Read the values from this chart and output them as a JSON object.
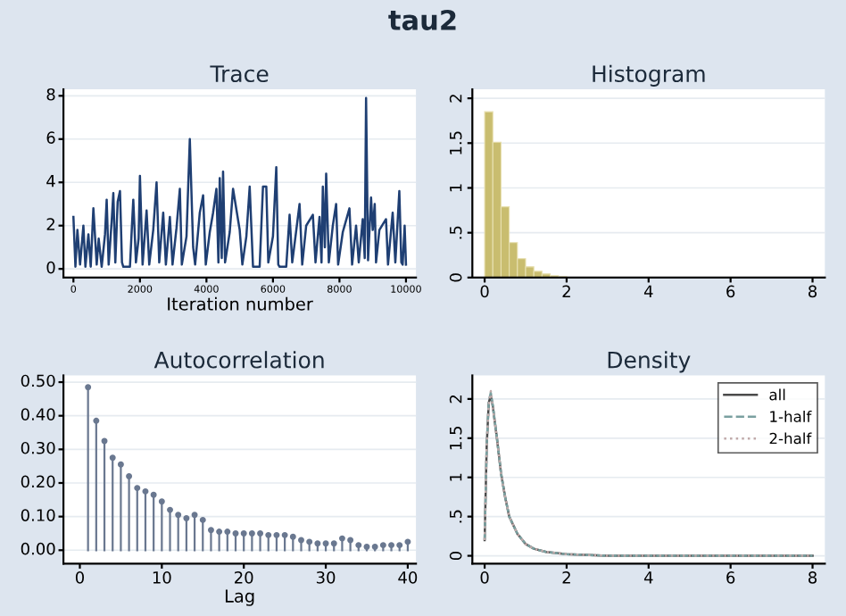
{
  "chart_data": [
    {
      "type": "line",
      "title": "Trace",
      "xlabel": "Iteration number",
      "annotations": [
        "tau2"
      ],
      "grid": "y",
      "x": [
        0,
        60,
        120,
        200,
        300,
        360,
        450,
        520,
        600,
        700,
        760,
        850,
        950,
        1000,
        1060,
        1150,
        1200,
        1260,
        1330,
        1400,
        1460,
        1500,
        1600,
        1700,
        1760,
        1800,
        1880,
        1960,
        2000,
        2080,
        2200,
        2280,
        2400,
        2500,
        2580,
        2700,
        2780,
        2900,
        2980,
        3100,
        3200,
        3260,
        3400,
        3500,
        3600,
        3660,
        3800,
        3900,
        3980,
        4100,
        4200,
        4300,
        4360,
        4400,
        4460,
        4500,
        4560,
        4700,
        4800,
        5000,
        5080,
        5200,
        5300,
        5400,
        5600,
        5700,
        5800,
        5860,
        6000,
        6100,
        6160,
        6200,
        6400,
        6500,
        6580,
        6800,
        6880,
        7000,
        7200,
        7280,
        7400,
        7460,
        7500,
        7560,
        7600,
        7680,
        7800,
        7900,
        7960,
        8100,
        8300,
        8380,
        8500,
        8580,
        8700,
        8760,
        8800,
        8860,
        8950,
        9000,
        9060,
        9100,
        9200,
        9400,
        9460,
        9600,
        9680,
        9800,
        9860,
        9900,
        9960,
        10000
      ],
      "series": [
        {
          "color": "#1f3f73",
          "values": [
            2.4,
            0.1,
            1.8,
            0.2,
            2.0,
            0.1,
            1.6,
            0.1,
            2.8,
            0.2,
            1.4,
            0.1,
            1.6,
            3.2,
            0.2,
            2.2,
            3.5,
            0.3,
            3.1,
            3.6,
            0.3,
            0.1,
            0.1,
            0.1,
            2.0,
            3.2,
            0.3,
            1.4,
            4.3,
            0.2,
            2.7,
            0.2,
            1.8,
            4.0,
            0.3,
            2.6,
            0.2,
            2.4,
            0.2,
            1.9,
            3.7,
            0.2,
            1.5,
            6.0,
            1.0,
            0.2,
            2.6,
            3.4,
            0.2,
            1.7,
            2.6,
            3.7,
            0.3,
            4.2,
            0.5,
            4.5,
            0.3,
            1.7,
            3.7,
            1.8,
            0.2,
            1.5,
            3.8,
            0.1,
            0.1,
            3.8,
            3.8,
            0.3,
            1.5,
            4.7,
            0.2,
            0.1,
            0.1,
            2.5,
            0.3,
            3.0,
            0.2,
            2.0,
            2.5,
            0.3,
            2.4,
            0.3,
            3.8,
            1.0,
            4.4,
            0.3,
            2.0,
            3.0,
            0.2,
            1.7,
            2.8,
            0.2,
            2.0,
            0.3,
            2.3,
            0.5,
            7.9,
            0.4,
            3.3,
            1.8,
            3.0,
            0.3,
            1.8,
            2.3,
            0.2,
            2.6,
            0.3,
            3.6,
            0.3,
            0.2,
            2.0,
            0.2
          ]
        }
      ],
      "xlim": [
        -300,
        10300
      ],
      "xticks": [
        0,
        2000,
        4000,
        6000,
        8000,
        10000
      ],
      "ylim": [
        -0.4,
        8.3
      ],
      "yticks": [
        0,
        2,
        4,
        6,
        8
      ]
    },
    {
      "type": "histogram",
      "title": "Histogram",
      "grid": "y",
      "color": "#c9bd6f",
      "bins": [
        0,
        0.2,
        0.4,
        0.6,
        0.8,
        1.0,
        1.2,
        1.4,
        1.6,
        1.8,
        2.0
      ],
      "values": [
        1.85,
        1.51,
        0.79,
        0.39,
        0.21,
        0.12,
        0.07,
        0.04,
        0.02,
        0.01
      ],
      "xlim": [
        -0.3,
        8.3
      ],
      "xticks": [
        0,
        2,
        4,
        6,
        8
      ],
      "ylim": [
        0,
        2.1
      ],
      "yticks": [
        {
          "value": 0,
          "label": "0"
        },
        {
          "value": 0.5,
          "label": ".5"
        },
        {
          "value": 1,
          "label": "1"
        },
        {
          "value": 1.5,
          "label": "1.5"
        },
        {
          "value": 2,
          "label": "2"
        }
      ]
    },
    {
      "type": "lollipop",
      "title": "Autocorrelation",
      "xlabel": "Lag",
      "grid": "y",
      "color": "#6a7890",
      "x": [
        1,
        2,
        3,
        4,
        5,
        6,
        7,
        8,
        9,
        10,
        11,
        12,
        13,
        14,
        15,
        16,
        17,
        18,
        19,
        20,
        21,
        22,
        23,
        24,
        25,
        26,
        27,
        28,
        29,
        30,
        31,
        32,
        33,
        34,
        35,
        36,
        37,
        38,
        39,
        40
      ],
      "values": [
        0.485,
        0.385,
        0.325,
        0.275,
        0.255,
        0.22,
        0.185,
        0.175,
        0.165,
        0.145,
        0.12,
        0.105,
        0.095,
        0.105,
        0.09,
        0.06,
        0.055,
        0.055,
        0.05,
        0.05,
        0.05,
        0.05,
        0.045,
        0.045,
        0.045,
        0.04,
        0.03,
        0.025,
        0.02,
        0.02,
        0.02,
        0.035,
        0.03,
        0.015,
        0.01,
        0.01,
        0.015,
        0.015,
        0.015,
        0.025
      ],
      "xlim": [
        -2,
        41
      ],
      "xticks": [
        0,
        10,
        20,
        30,
        40
      ],
      "ylim": [
        -0.04,
        0.52
      ],
      "yticks": [
        {
          "value": 0,
          "label": "0.00"
        },
        {
          "value": 0.1,
          "label": "0.10"
        },
        {
          "value": 0.2,
          "label": "0.20"
        },
        {
          "value": 0.3,
          "label": "0.30"
        },
        {
          "value": 0.4,
          "label": "0.40"
        },
        {
          "value": 0.5,
          "label": "0.50"
        }
      ]
    },
    {
      "type": "line",
      "title": "Density",
      "grid": "y",
      "legend": "top right",
      "x": [
        0,
        0.05,
        0.1,
        0.15,
        0.2,
        0.3,
        0.4,
        0.5,
        0.6,
        0.8,
        1.0,
        1.2,
        1.5,
        2,
        3,
        4,
        6,
        8
      ],
      "series": [
        {
          "name": "all",
          "color": "#4a4a4a",
          "line_style": "solid",
          "values": [
            0.2,
            1.4,
            1.95,
            2.05,
            1.9,
            1.5,
            1.05,
            0.75,
            0.5,
            0.28,
            0.15,
            0.09,
            0.05,
            0.02,
            0,
            0,
            0,
            0
          ]
        },
        {
          "name": "1-half",
          "color": "#7aa0a0",
          "line_style": "dashed",
          "values": [
            0.2,
            1.4,
            1.97,
            2.08,
            1.92,
            1.5,
            1.05,
            0.75,
            0.5,
            0.28,
            0.15,
            0.09,
            0.05,
            0.02,
            0,
            0,
            0,
            0
          ]
        },
        {
          "name": "2-half",
          "color": "#c0aaaa",
          "line_style": "dotted",
          "values": [
            0.2,
            1.4,
            1.93,
            2.1,
            1.88,
            1.5,
            1.05,
            0.75,
            0.5,
            0.28,
            0.15,
            0.09,
            0.05,
            0.02,
            0,
            0,
            0,
            0
          ]
        }
      ],
      "xlim": [
        -0.3,
        8.3
      ],
      "xticks": [
        0,
        2,
        4,
        6,
        8
      ],
      "ylim": [
        -0.1,
        2.3
      ],
      "yticks": [
        {
          "value": 0,
          "label": "0"
        },
        {
          "value": 0.5,
          "label": ".5"
        },
        {
          "value": 1,
          "label": "1"
        },
        {
          "value": 1.5,
          "label": "1.5"
        },
        {
          "value": 2,
          "label": "2"
        }
      ]
    }
  ]
}
